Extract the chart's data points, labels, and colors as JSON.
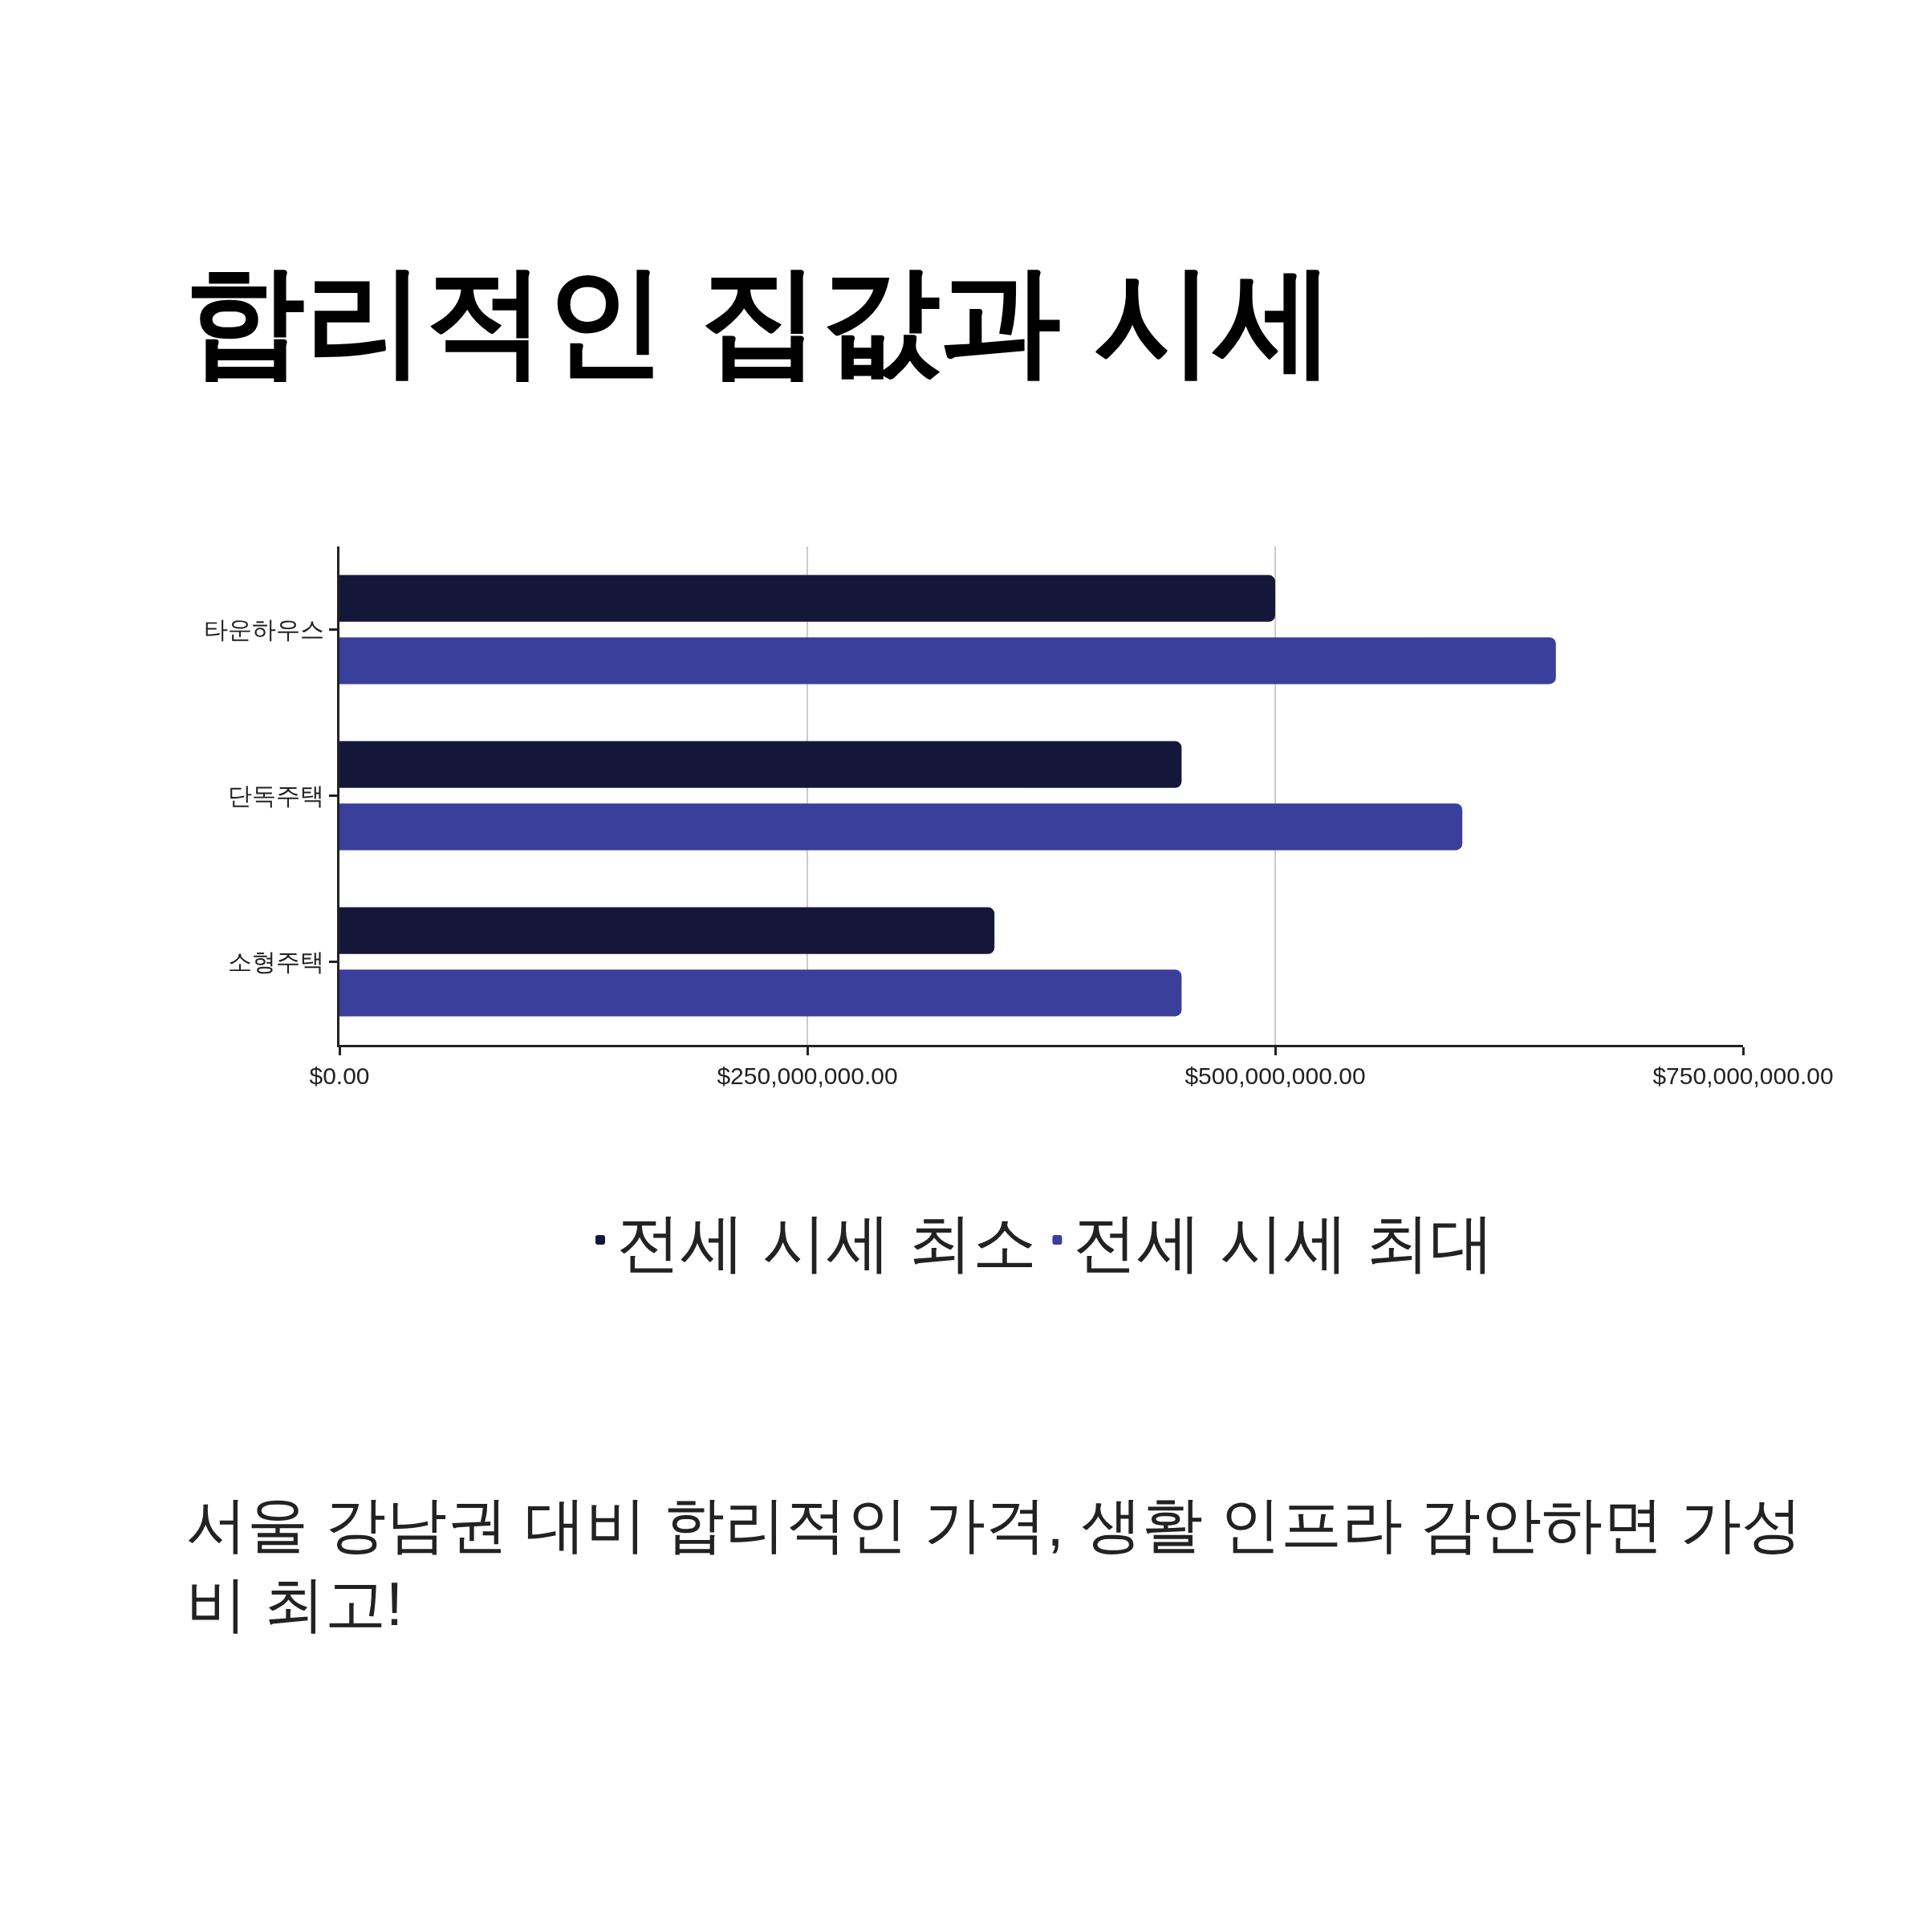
{
  "chart_data": {
    "type": "bar",
    "orientation": "horizontal",
    "title": "합리적인 집값과 시세",
    "categories": [
      "타운하우스",
      "단독주택",
      "소형주택"
    ],
    "series": [
      {
        "name": "전세 시세 최소",
        "color": "#15173a",
        "values": [
          500000000,
          450000000,
          350000000
        ]
      },
      {
        "name": "전세 시세 최대",
        "color": "#3a3f9b",
        "values": [
          650000000,
          600000000,
          450000000
        ]
      }
    ],
    "xlim": [
      0,
      750000000
    ],
    "xticks": [
      {
        "value": 0,
        "label": "$0.00"
      },
      {
        "value": 250000000,
        "label": "$250,000,000.00"
      },
      {
        "value": 500000000,
        "label": "$500,000,000.00"
      },
      {
        "value": 750000000,
        "label": "$750,000,000.00"
      }
    ],
    "grid": "x",
    "legend": "bottom",
    "annotations": [
      "서울 강남권 대비 합리적인 가격, 생활 인프라 감안하면 가성비 최고!"
    ]
  }
}
